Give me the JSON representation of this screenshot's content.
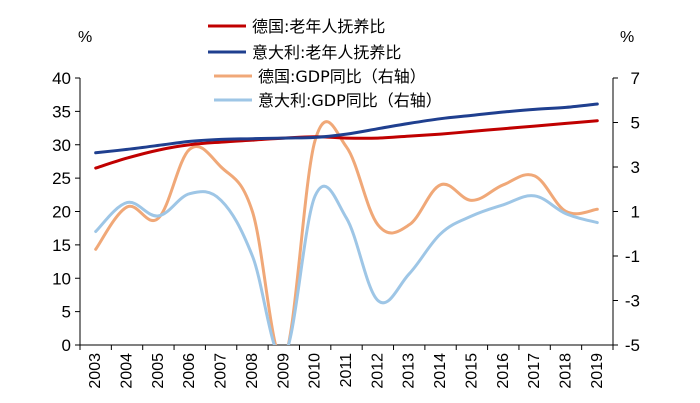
{
  "chart_data": {
    "type": "line",
    "title": "",
    "xlabel": "",
    "left_unit": "%",
    "right_unit": "%",
    "categories": [
      "2003",
      "2004",
      "2005",
      "2006",
      "2007",
      "2008",
      "2009",
      "2010",
      "2011",
      "2012",
      "2013",
      "2014",
      "2015",
      "2016",
      "2017",
      "2018",
      "2019"
    ],
    "ylim_left": [
      0,
      40
    ],
    "ylim_right": [
      -5,
      7
    ],
    "left_ticks": [
      "0",
      "5",
      "10",
      "15",
      "20",
      "25",
      "30",
      "35",
      "40"
    ],
    "right_ticks": [
      "-5",
      "-3",
      "-1",
      "1",
      "3",
      "5",
      "7"
    ],
    "series": [
      {
        "name": "德国:老年人抚养比",
        "axis": "left",
        "color": "#c00000",
        "values": [
          26.5,
          28.0,
          29.2,
          30.0,
          30.4,
          30.7,
          31.0,
          31.2,
          31.0,
          31.0,
          31.3,
          31.6,
          32.0,
          32.4,
          32.8,
          33.2,
          33.6
        ]
      },
      {
        "name": "意大利:老年人抚养比",
        "axis": "left",
        "color": "#1f3f8f",
        "values": [
          28.8,
          29.3,
          29.9,
          30.5,
          30.8,
          30.9,
          31.0,
          31.1,
          31.6,
          32.4,
          33.2,
          33.9,
          34.4,
          34.9,
          35.3,
          35.6,
          36.1
        ]
      },
      {
        "name": "德国:GDP同比（右轴）",
        "axis": "right",
        "color": "#f0a878",
        "values": [
          -0.7,
          1.2,
          0.7,
          3.8,
          3.0,
          1.0,
          -5.6,
          4.2,
          3.9,
          0.4,
          0.4,
          2.2,
          1.5,
          2.2,
          2.6,
          1.0,
          1.1
        ]
      },
      {
        "name": "意大利:GDP同比（右轴）",
        "axis": "right",
        "color": "#9ec6e6",
        "values": [
          0.1,
          1.4,
          0.8,
          1.8,
          1.5,
          -1.0,
          -5.5,
          1.7,
          0.7,
          -3.0,
          -1.8,
          0.0,
          0.8,
          1.3,
          1.7,
          0.9,
          0.5
        ]
      }
    ],
    "legend_position": "top-center",
    "grid": false
  }
}
